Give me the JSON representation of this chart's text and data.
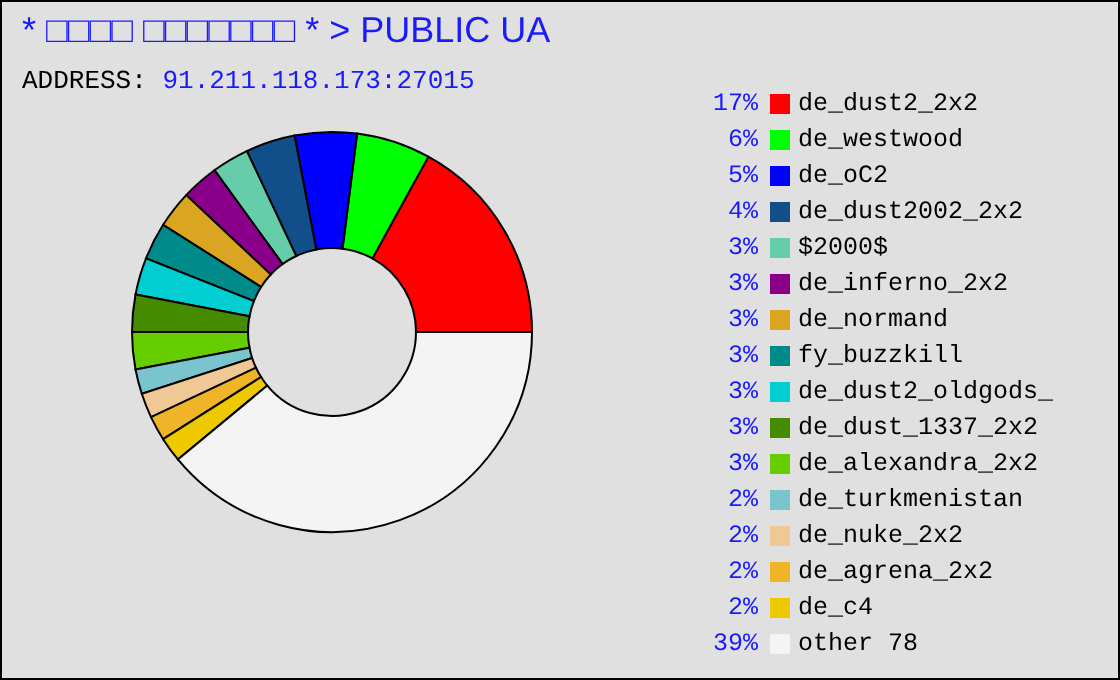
{
  "chart_data": {
    "type": "donut",
    "title": "* □□□□ □□□□□□□ * > PUBLIC UA",
    "subtitle": "ADDRESS: 91.211.118.173:27015",
    "categories": [
      "de_dust2_2x2",
      "de_westwood",
      "de_oC2",
      "de_dust2002_2x2",
      "$2000$",
      "de_inferno_2x2",
      "de_normand",
      "fy_buzzkill",
      "de_dust2_oldgods_",
      "de_dust_1337_2x2",
      "de_alexandra_2x2",
      "de_turkmenistan",
      "de_nuke_2x2",
      "de_agrena_2x2",
      "de_c4",
      "other 78"
    ],
    "values": [
      17,
      6,
      5,
      4,
      3,
      3,
      3,
      3,
      3,
      3,
      3,
      2,
      2,
      2,
      2,
      39
    ],
    "value_labels": [
      "17%",
      "6%",
      "5%",
      "4%",
      "3%",
      "3%",
      "3%",
      "3%",
      "3%",
      "3%",
      "3%",
      "2%",
      "2%",
      "2%",
      "2%",
      "39%"
    ],
    "colors": [
      "#ff0000",
      "#00ff00",
      "#0000ff",
      "#124f8a",
      "#66cdaa",
      "#8b008b",
      "#daa520",
      "#008b8b",
      "#00ced1",
      "#458b00",
      "#66cd00",
      "#7ac5cd",
      "#f0c896",
      "#f0b428",
      "#eec900",
      "#f4f4f4"
    ],
    "legend": "right"
  }
}
